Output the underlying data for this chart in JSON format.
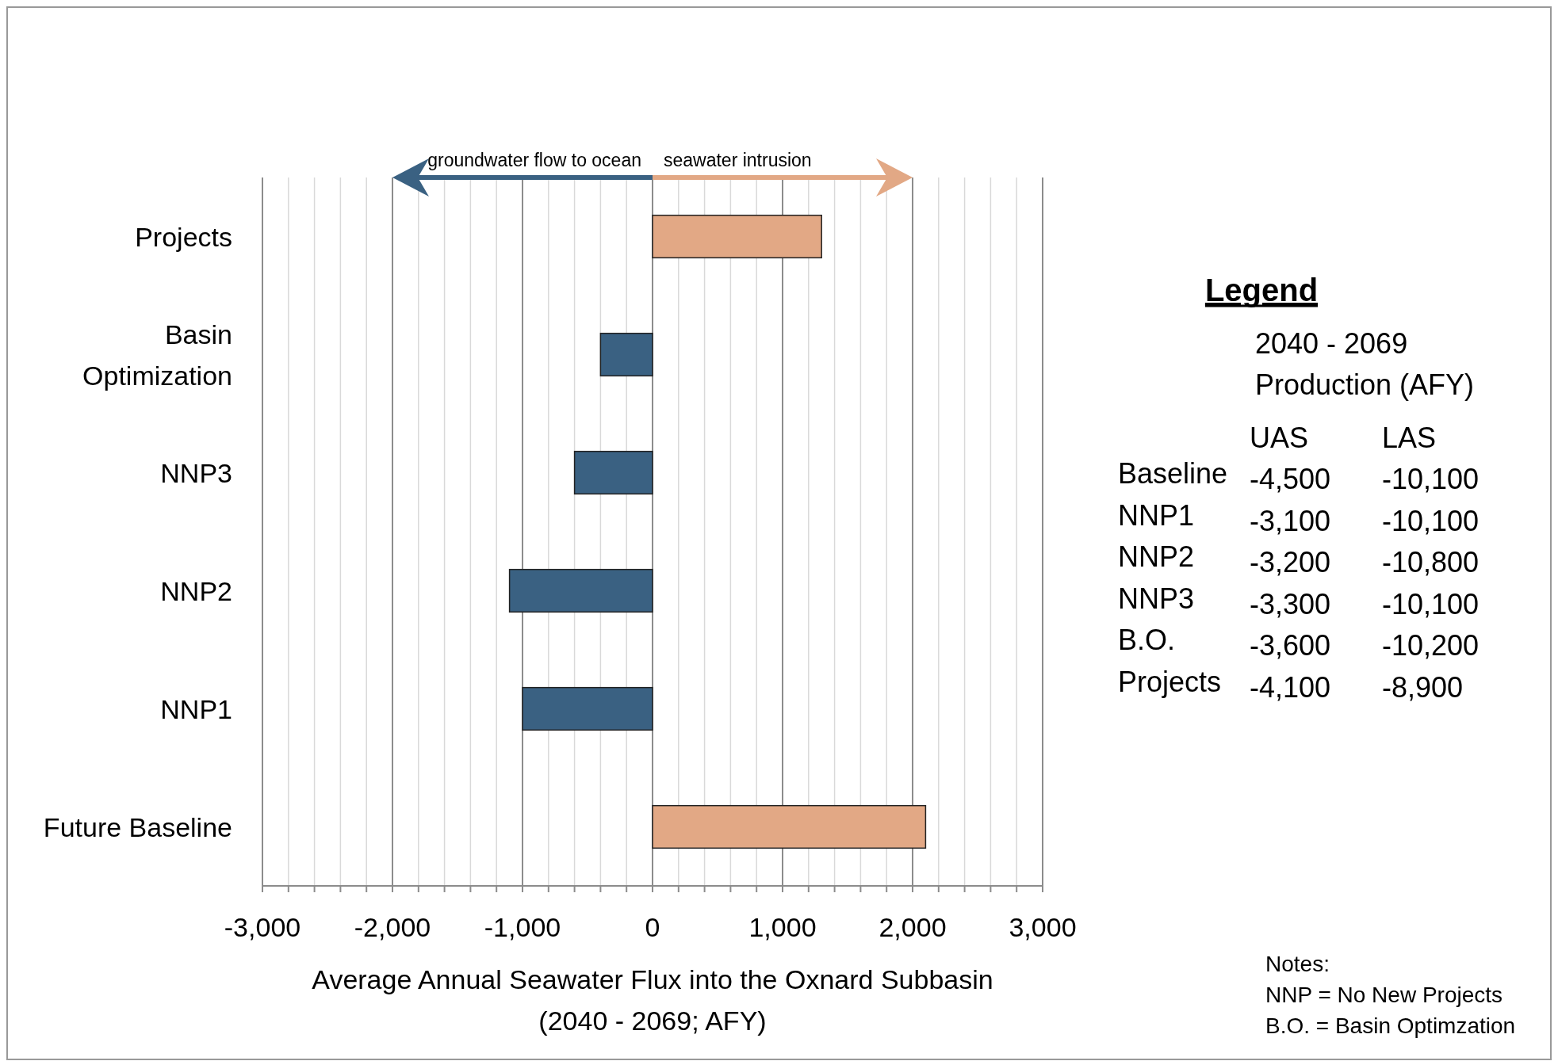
{
  "chart_data": [
    {
      "type": "bar",
      "orientation": "horizontal",
      "xlabel": "Average Annual Seawater Flux into the Oxnard Subbasin\n(2040 - 2069; AFY)",
      "categories": [
        "Projects",
        "Basin Optimization",
        "NNP3",
        "NNP2",
        "NNP1",
        "Future Baseline"
      ],
      "values": [
        1300,
        -400,
        -600,
        -1100,
        -1000,
        2100
      ],
      "colors": [
        "#e2a885",
        "#3a6182",
        "#3a6182",
        "#3a6182",
        "#3a6182",
        "#e2a885"
      ],
      "xlim": [
        -3000,
        3000
      ],
      "xticks": [
        {
          "value": -3000,
          "label": "-3,000"
        },
        {
          "value": -2800,
          "label": null
        },
        {
          "value": -2600,
          "label": null
        },
        {
          "value": -2400,
          "label": null
        },
        {
          "value": -2200,
          "label": null
        },
        {
          "value": -2000,
          "label": "-2,000"
        },
        {
          "value": -1800,
          "label": null
        },
        {
          "value": -1600,
          "label": null
        },
        {
          "value": -1400,
          "label": null
        },
        {
          "value": -1200,
          "label": null
        },
        {
          "value": -1000,
          "label": "-1,000"
        },
        {
          "value": -800,
          "label": null
        },
        {
          "value": -600,
          "label": null
        },
        {
          "value": -400,
          "label": null
        },
        {
          "value": -200,
          "label": null
        },
        0,
        {
          "value": 200,
          "label": null
        },
        {
          "value": 400,
          "label": null
        },
        {
          "value": 600,
          "label": null
        },
        {
          "value": 800,
          "label": null
        },
        {
          "value": 1000,
          "label": "1,000"
        },
        {
          "value": 1200,
          "label": null
        },
        {
          "value": 1400,
          "label": null
        },
        {
          "value": 1600,
          "label": null
        },
        {
          "value": 1800,
          "label": null
        },
        {
          "value": 2000,
          "label": "2,000"
        },
        {
          "value": 2200,
          "label": null
        },
        {
          "value": 2400,
          "label": null
        },
        {
          "value": 2600,
          "label": null
        },
        {
          "value": 2800,
          "label": null
        },
        {
          "value": 3000,
          "label": "3,000"
        }
      ],
      "grid": "x",
      "annotations": [
        "groundwater flow to ocean",
        "seawater intrusion",
        "Notes:",
        "NNP = No New Projects",
        "B.O. = Basin Optimzation"
      ]
    },
    {
      "type": "other",
      "title": "Legend",
      "subtitle": "2040 - 2069\nProduction (AFY)",
      "annotations": [
        "UAS",
        "LAS",
        "Baseline",
        "-4,500",
        "-10,100",
        "NNP1",
        "-3,100",
        "-10,100",
        "NNP2",
        "-3,200",
        "-10,800",
        "NNP3",
        "-3,300",
        "-10,100",
        "B.O.",
        "-3,600",
        "-10,200",
        "Projects",
        "-4,100",
        "-8,900"
      ]
    }
  ]
}
